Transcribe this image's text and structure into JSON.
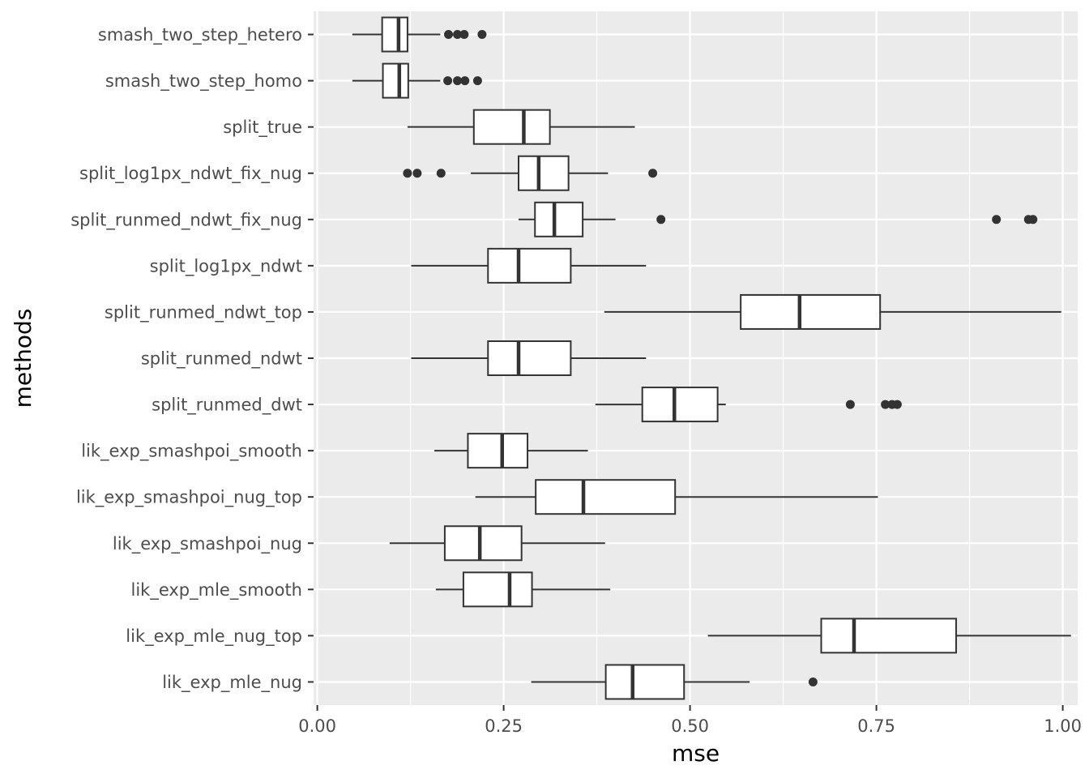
{
  "chart_data": {
    "type": "boxplot",
    "orientation": "horizontal",
    "xlabel": "mse",
    "ylabel": "methods",
    "xlim": [
      -0.005,
      1.02
    ],
    "x_ticks": [
      0.0,
      0.25,
      0.5,
      0.75,
      1.0
    ],
    "x_tick_labels": [
      "0.00",
      "0.25",
      "0.50",
      "0.75",
      "1.00"
    ],
    "grid": true,
    "panel_background": "#ebebeb",
    "grid_color": "#ffffff",
    "box_fill": "#ffffff",
    "line_color": "#333333",
    "categories": [
      "smash_two_step_hetero",
      "smash_two_step_homo",
      "split_true",
      "split_log1px_ndwt_fix_nug",
      "split_runmed_ndwt_fix_nug",
      "split_log1px_ndwt",
      "split_runmed_ndwt_top",
      "split_runmed_ndwt",
      "split_runmed_dwt",
      "lik_exp_smashpoi_smooth",
      "lik_exp_smashpoi_nug_top",
      "lik_exp_smashpoi_nug",
      "lik_exp_mle_smooth",
      "lik_exp_mle_nug_top",
      "lik_exp_mle_nug"
    ],
    "boxes": [
      {
        "min": 0.047,
        "q1": 0.087,
        "median": 0.109,
        "q3": 0.121,
        "max": 0.165,
        "outliers": [
          0.176,
          0.188,
          0.197,
          0.221
        ]
      },
      {
        "min": 0.047,
        "q1": 0.088,
        "median": 0.11,
        "q3": 0.122,
        "max": 0.165,
        "outliers": [
          0.175,
          0.188,
          0.198,
          0.215
        ]
      },
      {
        "min": 0.121,
        "q1": 0.21,
        "median": 0.277,
        "q3": 0.312,
        "max": 0.426,
        "outliers": []
      },
      {
        "min": 0.206,
        "q1": 0.27,
        "median": 0.297,
        "q3": 0.337,
        "max": 0.39,
        "outliers": [
          0.121,
          0.134,
          0.166,
          0.45
        ]
      },
      {
        "min": 0.27,
        "q1": 0.292,
        "median": 0.318,
        "q3": 0.356,
        "max": 0.4,
        "outliers": [
          0.461,
          0.911,
          0.954,
          0.96
        ]
      },
      {
        "min": 0.126,
        "q1": 0.229,
        "median": 0.27,
        "q3": 0.34,
        "max": 0.441,
        "outliers": []
      },
      {
        "min": 0.385,
        "q1": 0.568,
        "median": 0.647,
        "q3": 0.755,
        "max": 0.998,
        "outliers": []
      },
      {
        "min": 0.126,
        "q1": 0.229,
        "median": 0.27,
        "q3": 0.34,
        "max": 0.441,
        "outliers": []
      },
      {
        "min": 0.373,
        "q1": 0.436,
        "median": 0.479,
        "q3": 0.537,
        "max": 0.548,
        "outliers": [
          0.715,
          0.762,
          0.771,
          0.778
        ]
      },
      {
        "min": 0.157,
        "q1": 0.202,
        "median": 0.248,
        "q3": 0.282,
        "max": 0.363,
        "outliers": []
      },
      {
        "min": 0.212,
        "q1": 0.293,
        "median": 0.357,
        "q3": 0.48,
        "max": 0.752,
        "outliers": []
      },
      {
        "min": 0.097,
        "q1": 0.171,
        "median": 0.218,
        "q3": 0.274,
        "max": 0.386,
        "outliers": []
      },
      {
        "min": 0.159,
        "q1": 0.196,
        "median": 0.258,
        "q3": 0.288,
        "max": 0.393,
        "outliers": []
      },
      {
        "min": 0.524,
        "q1": 0.676,
        "median": 0.72,
        "q3": 0.857,
        "max": 1.011,
        "outliers": []
      },
      {
        "min": 0.287,
        "q1": 0.387,
        "median": 0.423,
        "q3": 0.492,
        "max": 0.58,
        "outliers": [
          0.665
        ]
      }
    ]
  }
}
